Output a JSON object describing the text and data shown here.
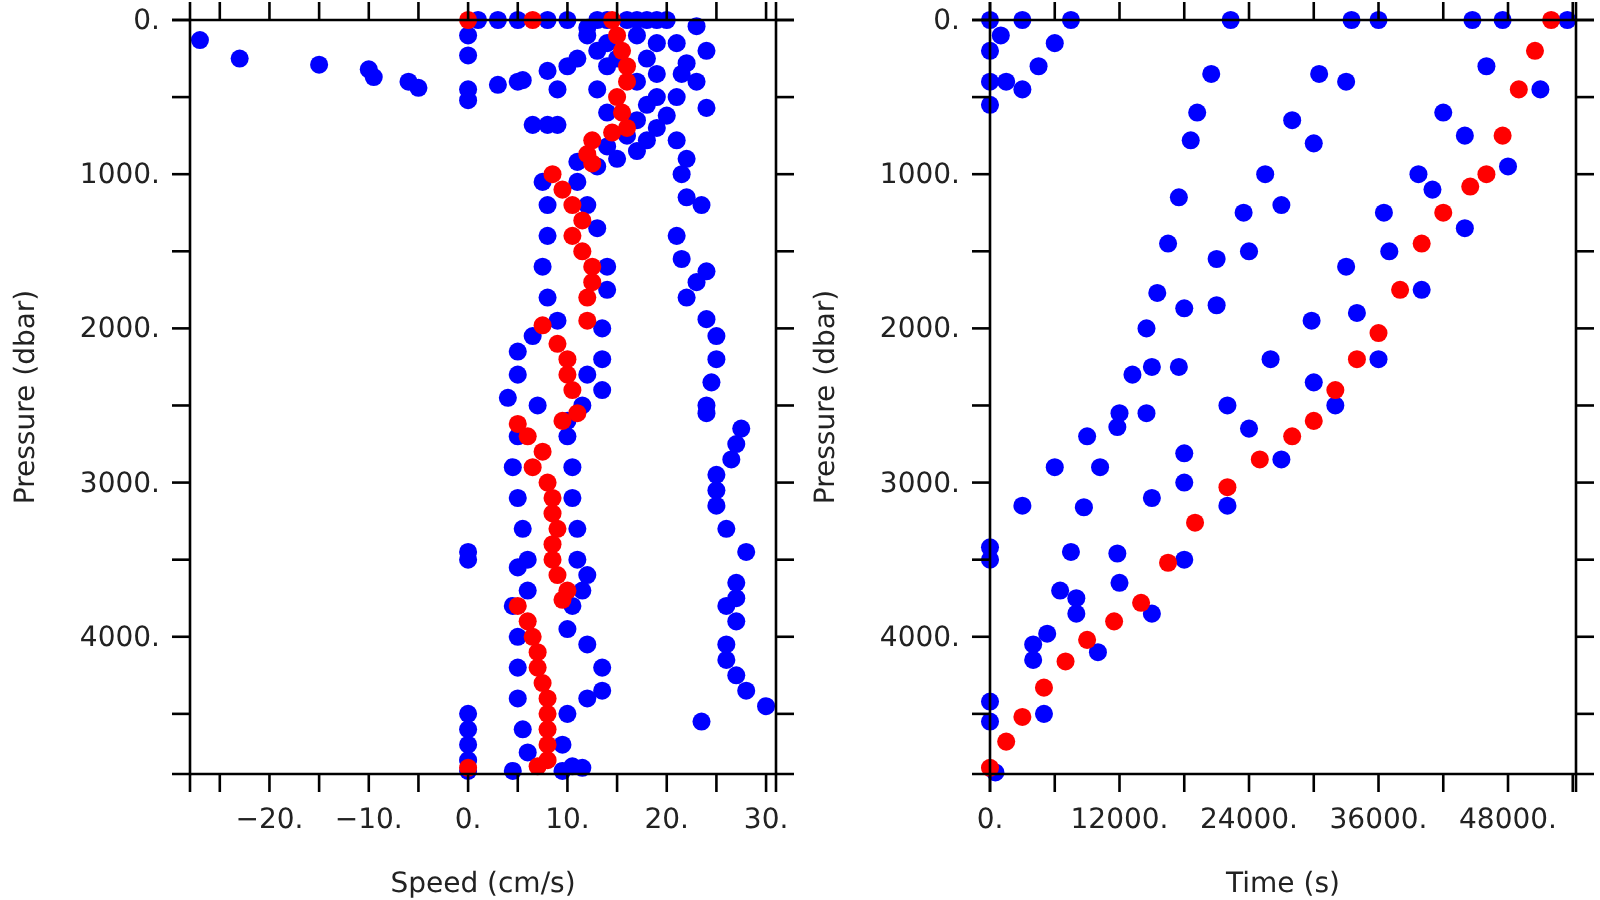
{
  "chart_data": [
    {
      "type": "scatter",
      "xlabel": "Speed (cm/s)",
      "ylabel": "Pressure (dbar)",
      "xlim": [
        -28,
        31
      ],
      "ylim": [
        4890,
        0
      ],
      "xticks": [
        {
          "value": -25,
          "label": null
        },
        {
          "value": -20,
          "label": "−20."
        },
        {
          "value": -15,
          "label": null
        },
        {
          "value": -10,
          "label": "−10."
        },
        {
          "value": -5,
          "label": null
        },
        {
          "value": 0,
          "label": "0."
        },
        {
          "value": 5,
          "label": null
        },
        {
          "value": 10,
          "label": "10."
        },
        {
          "value": 15,
          "label": null
        },
        {
          "value": 20,
          "label": "20."
        },
        {
          "value": 25,
          "label": null
        },
        {
          "value": 30,
          "label": "30."
        }
      ],
      "yticks": [
        {
          "value": 0,
          "label": "0."
        },
        {
          "value": 500,
          "label": null
        },
        {
          "value": 1000,
          "label": "1000."
        },
        {
          "value": 1500,
          "label": null
        },
        {
          "value": 2000,
          "label": "2000."
        },
        {
          "value": 2500,
          "label": null
        },
        {
          "value": 3000,
          "label": "3000."
        },
        {
          "value": 3500,
          "label": null
        },
        {
          "value": 4000,
          "label": "4000."
        },
        {
          "value": 4500,
          "label": null
        }
      ],
      "grid": false,
      "marker": "circle",
      "series": [
        {
          "color": "#0000ff",
          "x": [
            -27,
            -23,
            -15,
            -10,
            -9.5,
            -6,
            -5,
            3,
            5,
            5.5,
            6.5,
            8,
            9,
            0,
            0,
            0,
            0,
            0,
            0,
            0,
            0,
            0,
            0,
            0,
            23,
            21,
            24,
            22,
            21.5,
            23,
            21,
            24,
            21,
            22,
            21.5,
            22,
            23.5,
            21,
            21.5,
            24,
            23,
            22,
            24,
            25,
            25,
            24.5,
            24,
            24,
            27.5,
            27,
            26.5,
            25,
            25,
            25,
            26,
            28,
            27,
            27,
            26,
            27,
            26,
            26,
            27,
            28,
            30,
            23.5,
            13,
            14,
            16,
            17,
            18,
            19,
            20,
            1,
            3,
            5,
            8,
            10,
            12,
            17,
            19,
            13,
            18,
            14,
            19,
            17,
            13,
            19,
            18,
            14,
            20,
            17,
            19,
            16,
            18,
            14,
            17,
            15,
            13,
            11,
            12,
            10,
            11,
            8,
            9,
            14,
            15,
            7.5,
            11,
            8,
            12,
            8,
            13,
            7.5,
            14,
            8,
            14,
            9,
            13.5,
            6.5,
            13.5,
            5,
            12,
            5,
            13.5,
            4,
            11.5,
            7,
            10,
            5,
            10,
            4.5,
            10.5,
            5,
            10.5,
            5.5,
            11,
            6,
            11,
            5,
            12,
            6,
            11.5,
            4.5,
            10.5,
            5,
            10,
            5,
            12,
            13.5,
            5,
            13.5,
            12,
            5.5,
            10,
            6,
            9.5,
            11.5,
            10.5,
            9.5,
            4.5
          ],
          "values": [
            130,
            250,
            290,
            320,
            370,
            400,
            440,
            420,
            400,
            390,
            680,
            680,
            680,
            100,
            230,
            450,
            520,
            3450,
            3500,
            4500,
            4600,
            4700,
            4800,
            4870,
            40,
            150,
            200,
            280,
            350,
            400,
            500,
            570,
            780,
            900,
            1000,
            1150,
            1200,
            1400,
            1550,
            1630,
            1700,
            1800,
            1940,
            2050,
            2200,
            2350,
            2500,
            2550,
            2650,
            2750,
            2850,
            2950,
            3050,
            3150,
            3300,
            3450,
            3650,
            3750,
            3800,
            3900,
            4050,
            4150,
            4250,
            4350,
            4450,
            4550,
            0,
            0,
            0,
            0,
            0,
            0,
            0,
            0,
            0,
            0,
            0,
            0,
            50,
            100,
            150,
            200,
            250,
            300,
            350,
            400,
            450,
            500,
            550,
            600,
            620,
            650,
            700,
            750,
            780,
            820,
            850,
            900,
            950,
            920,
            100,
            300,
            250,
            330,
            450,
            150,
            250,
            1050,
            1050,
            1200,
            1200,
            1400,
            1350,
            1600,
            1600,
            1800,
            1750,
            1950,
            2000,
            2050,
            2200,
            2150,
            2300,
            2300,
            2400,
            2450,
            2500,
            2500,
            2600,
            2700,
            2700,
            2900,
            2900,
            3100,
            3100,
            3300,
            3300,
            3500,
            3500,
            3550,
            3600,
            3700,
            3700,
            3800,
            3800,
            4000,
            3950,
            4200,
            4050,
            4200,
            4400,
            4350,
            4400,
            4600,
            4500,
            4750,
            4700,
            4850,
            4840,
            4870,
            4870
          ]
        },
        {
          "color": "#ff0000",
          "x": [
            0,
            6.5,
            14.5,
            15,
            15.5,
            16,
            16,
            15,
            15.5,
            16,
            14.5,
            12.5,
            12,
            12.5,
            8.5,
            9.5,
            10.5,
            11.5,
            10.5,
            11.5,
            12.5,
            12.5,
            12,
            12,
            7.5,
            9,
            10,
            10,
            10.5,
            11,
            9.5,
            5,
            6,
            7.5,
            6.5,
            8,
            8.5,
            8.5,
            9,
            8.5,
            8.5,
            9,
            10,
            9.5,
            5,
            6,
            6.5,
            7,
            7,
            7.5,
            8,
            8,
            8,
            8,
            8,
            7,
            0
          ],
          "values": [
            0,
            0,
            0,
            100,
            200,
            300,
            400,
            500,
            600,
            700,
            730,
            780,
            870,
            930,
            1000,
            1100,
            1200,
            1300,
            1400,
            1500,
            1600,
            1700,
            1800,
            1950,
            1980,
            2100,
            2200,
            2300,
            2400,
            2550,
            2600,
            2620,
            2700,
            2800,
            2900,
            3000,
            3100,
            3200,
            3300,
            3400,
            3500,
            3600,
            3700,
            3760,
            3800,
            3900,
            4000,
            4100,
            4200,
            4300,
            4400,
            4500,
            4600,
            4700,
            4800,
            4840,
            4850
          ]
        }
      ]
    },
    {
      "type": "scatter",
      "xlabel": "Time (s)",
      "ylabel": "Pressure (dbar)",
      "xlim": [
        0,
        54300
      ],
      "ylim": [
        4890,
        0
      ],
      "xticks": [
        {
          "value": 0,
          "label": "0."
        },
        {
          "value": 6000,
          "label": null
        },
        {
          "value": 12000,
          "label": "12000."
        },
        {
          "value": 18000,
          "label": null
        },
        {
          "value": 24000,
          "label": "24000."
        },
        {
          "value": 30000,
          "label": null
        },
        {
          "value": 36000,
          "label": "36000."
        },
        {
          "value": 42000,
          "label": null
        },
        {
          "value": 48000,
          "label": "48000."
        },
        {
          "value": 54000,
          "label": null
        }
      ],
      "yticks": [
        {
          "value": 0,
          "label": "0."
        },
        {
          "value": 500,
          "label": null
        },
        {
          "value": 1000,
          "label": "1000."
        },
        {
          "value": 1500,
          "label": null
        },
        {
          "value": 2000,
          "label": "2000."
        },
        {
          "value": 2500,
          "label": null
        },
        {
          "value": 3000,
          "label": "3000."
        },
        {
          "value": 3500,
          "label": null
        },
        {
          "value": 4000,
          "label": "4000."
        },
        {
          "value": 4500,
          "label": null
        }
      ],
      "grid": false,
      "marker": "circle",
      "series": [
        {
          "color": "#0000ff",
          "x": [
            0,
            0,
            0,
            0,
            1500,
            3000,
            4500,
            6000,
            7500,
            1000,
            3000,
            5300,
            6500,
            7500,
            8700,
            10200,
            11800,
            13200,
            14500,
            15500,
            16500,
            17500,
            18600,
            19200,
            20500,
            22300,
            0,
            0,
            3000,
            6000,
            9000,
            12000,
            15000,
            18000,
            21000,
            23500,
            25500,
            28000,
            30500,
            33500,
            36000,
            33000,
            30000,
            27000,
            24000,
            21000,
            17500,
            14500,
            0,
            4000,
            8000,
            11800,
            15000,
            18000,
            22000,
            26000,
            29800,
            33000,
            36500,
            39700,
            42000,
            44700,
            500,
            5000,
            10000,
            15000,
            18000,
            22000,
            27000,
            32000,
            36000,
            40000,
            44000,
            48000,
            51000,
            53500,
            0,
            4000,
            8000,
            12000,
            18000,
            24000,
            30000,
            34000,
            37000,
            41000,
            44000,
            46000,
            47500
          ],
          "values": [
            0,
            200,
            400,
            550,
            400,
            450,
            300,
            150,
            0,
            100,
            0,
            3980,
            3700,
            3450,
            3160,
            2900,
            2640,
            2300,
            2000,
            1770,
            1450,
            1150,
            780,
            600,
            350,
            0,
            3420,
            3500,
            3150,
            2900,
            2700,
            2550,
            2250,
            1870,
            1550,
            1250,
            1000,
            650,
            350,
            0,
            0,
            400,
            800,
            1200,
            1500,
            1850,
            2250,
            2550,
            4420,
            4050,
            3750,
            3460,
            3100,
            2810,
            2500,
            2200,
            1950,
            1600,
            1250,
            1000,
            600,
            0,
            4880,
            4500,
            4100,
            3850,
            3500,
            3150,
            2850,
            2500,
            2200,
            1750,
            1350,
            950,
            450,
            0,
            4550,
            4150,
            3850,
            3650,
            3000,
            2650,
            2350,
            1900,
            1500,
            1100,
            750,
            300,
            0
          ]
        },
        {
          "color": "#ff0000",
          "x": [
            0,
            1500,
            3000,
            5000,
            7000,
            9000,
            11500,
            14000,
            16500,
            19000,
            22000,
            25000,
            28000,
            30000,
            32000,
            34000,
            36000,
            38000,
            40000,
            42000,
            44500,
            46000,
            47500,
            49000,
            50500,
            52000
          ],
          "values": [
            4850,
            4680,
            4520,
            4330,
            4160,
            4020,
            3900,
            3780,
            3520,
            3260,
            3030,
            2850,
            2700,
            2600,
            2400,
            2200,
            2030,
            1750,
            1450,
            1250,
            1080,
            1000,
            750,
            450,
            200,
            0
          ]
        }
      ]
    }
  ]
}
